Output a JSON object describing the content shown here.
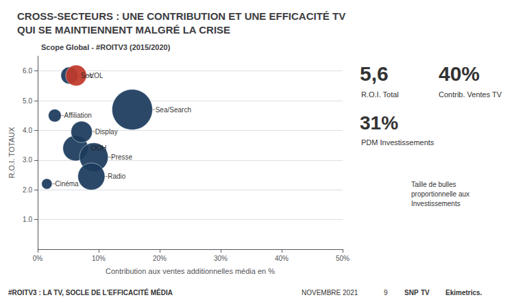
{
  "chart_data": {
    "type": "scatter",
    "title": "CROSS-SECTEURS : UNE CONTRIBUTION ET UNE EFFICACITÉ TV\nQUI SE MAINTIENNENT MALGRÉ LA CRISE",
    "subtitle": "Scope Global - #ROITV3 (2015/2020)",
    "xlabel": "Contribution aux ventes additionnelles média en %",
    "ylabel": "R.O.I. TOTAUX",
    "labels": [
      "Cinéma",
      "Affiliation",
      "OOH",
      "Display",
      "Presse",
      "Radio",
      "Sea/Search",
      "Soc.",
      "VOL"
    ],
    "x": [
      1.5,
      2.8,
      6.2,
      7.2,
      9.2,
      8.8,
      15.5,
      5.2,
      6.3
    ],
    "values": [
      2.2,
      4.5,
      3.4,
      3.95,
      3.1,
      2.45,
      4.7,
      5.85,
      5.85
    ],
    "sizes": [
      120,
      180,
      700,
      500,
      900,
      800,
      1800,
      320,
      480
    ],
    "colors": [
      "#1b3a5c",
      "#1b3a5c",
      "#1b3a5c",
      "#1b3a5c",
      "#1b3a5c",
      "#1b3a5c",
      "#1b3a5c",
      "#1b3a5c",
      "#c0392b"
    ],
    "xlim": [
      0,
      50
    ],
    "xticks": [
      {
        "value": 0,
        "label": "0%"
      },
      {
        "value": 10,
        "label": "10%"
      },
      {
        "value": 20,
        "label": "20%"
      },
      {
        "value": 30,
        "label": "30%"
      },
      {
        "value": 40,
        "label": "40%"
      },
      {
        "value": 50,
        "label": "50%"
      }
    ],
    "ylim": [
      0,
      6.5
    ],
    "yticks": [
      {
        "value": 1.0,
        "label": "1.0"
      },
      {
        "value": 2.0,
        "label": "2.0"
      },
      {
        "value": 3.0,
        "label": "3.0"
      },
      {
        "value": 4.0,
        "label": "4.0"
      },
      {
        "value": 5.0,
        "label": "5.0"
      },
      {
        "value": 6.0,
        "label": "6.0"
      }
    ],
    "grid": "y",
    "annotations": [
      "5,6",
      "R.O.I. Total",
      "40%",
      "Contrib. Ventes TV",
      "31%",
      "PDM Investissements",
      "Taille de bulles\nproportionnelle aux\nInvestissements",
      "#ROITV3 : LA TV, SOCLE DE L'EFFICACITÉ MÉDIA",
      "NOVEMBRE 2021",
      "9",
      "SNP",
      "TV",
      "Ekimetrics."
    ]
  }
}
